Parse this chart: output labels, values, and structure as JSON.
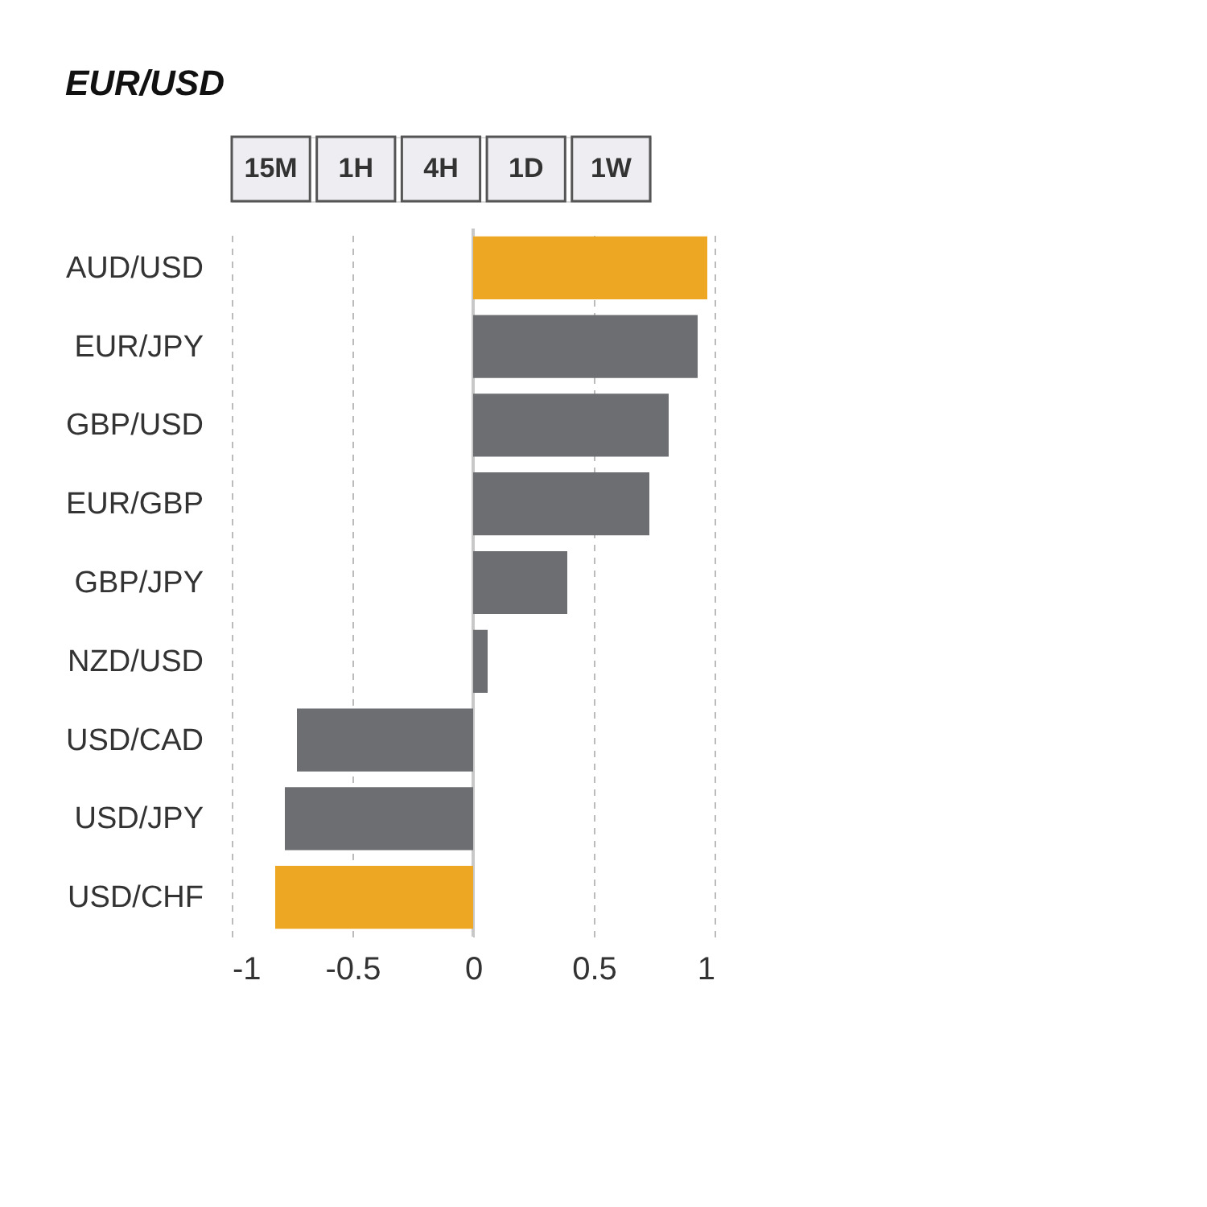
{
  "chart_data": {
    "type": "bar",
    "title": "EUR/USD",
    "orientation": "horizontal",
    "annotations": [
      "15M",
      "1H",
      "4H",
      "1D",
      "1W"
    ],
    "categories": [
      "AUD/USD",
      "EUR/JPY",
      "GBP/USD",
      "EUR/GBP",
      "GBP/JPY",
      "NZD/USD",
      "USD/CAD",
      "USD/JPY",
      "USD/CHF"
    ],
    "values": [
      0.97,
      0.93,
      0.81,
      0.73,
      0.39,
      0.06,
      -0.73,
      -0.78,
      -0.82
    ],
    "colors": [
      "#eea722",
      "#6d6e71",
      "#6d6e71",
      "#6d6e71",
      "#6d6e71",
      "#6d6e71",
      "#6d6e71",
      "#6d6e71",
      "#eea722"
    ],
    "xlim": [
      -1,
      1
    ],
    "xticks": [
      -1,
      -0.5,
      0,
      0.5,
      1
    ],
    "grid": "x",
    "ref_lines": [
      {
        "axis": "x",
        "value": 0,
        "color": "#c8c8c8"
      }
    ]
  }
}
